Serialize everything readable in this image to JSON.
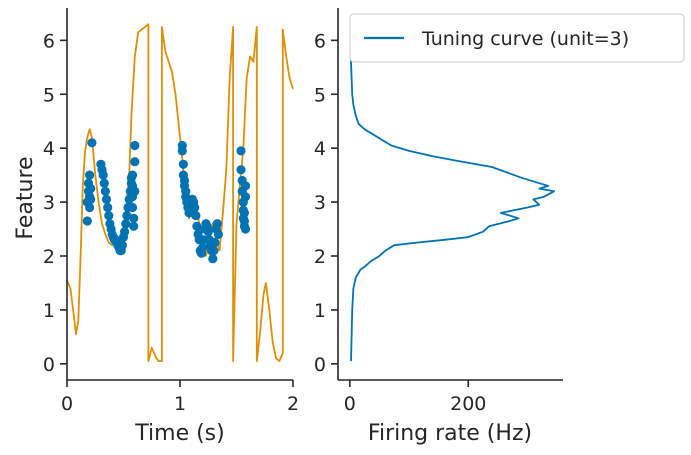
{
  "chart_data": [
    {
      "type": "line+scatter",
      "xlabel": "Time (s)",
      "ylabel": "Feature",
      "xlim": [
        0,
        2
      ],
      "ylim": [
        -0.3,
        6.6
      ],
      "xticks": [
        0,
        1,
        2
      ],
      "yticks": [
        0,
        1,
        2,
        3,
        4,
        5,
        6
      ],
      "xtick_labels": [
        "0",
        "1",
        "2"
      ],
      "ytick_labels": [
        "0",
        "1",
        "2",
        "3",
        "4",
        "5",
        "6"
      ],
      "grid": false,
      "colors": {
        "line": "#DE8F05",
        "scatter": "#0173B2"
      },
      "line": {
        "x": [
          0.0,
          0.03,
          0.06,
          0.08,
          0.1,
          0.12,
          0.14,
          0.16,
          0.18,
          0.2,
          0.22,
          0.25,
          0.28,
          0.31,
          0.34,
          0.37,
          0.4,
          0.43,
          0.46,
          0.49,
          0.52,
          0.55,
          0.57,
          0.6,
          0.63,
          0.66,
          0.69,
          0.72,
          0.72,
          0.75,
          0.78,
          0.81,
          0.84,
          0.84,
          0.87,
          0.9,
          0.93,
          0.96,
          0.99,
          1.02,
          1.05,
          1.08,
          1.11,
          1.14,
          1.17,
          1.2,
          1.23,
          1.26,
          1.29,
          1.32,
          1.35,
          1.38,
          1.41,
          1.44,
          1.47,
          1.47,
          1.5,
          1.53,
          1.56,
          1.59,
          1.62,
          1.65,
          1.68,
          1.68,
          1.71,
          1.74,
          1.76,
          1.79,
          1.82,
          1.85,
          1.88,
          1.91,
          1.91,
          1.94,
          1.97,
          2.0
        ],
        "y": [
          1.55,
          1.4,
          0.9,
          0.55,
          0.8,
          2.0,
          3.3,
          3.95,
          4.2,
          4.35,
          4.2,
          3.5,
          3.0,
          2.6,
          2.4,
          2.25,
          2.2,
          2.3,
          2.15,
          2.4,
          2.8,
          3.5,
          4.6,
          5.7,
          6.15,
          6.2,
          6.25,
          6.3,
          0.05,
          0.3,
          0.15,
          0.05,
          0.05,
          6.25,
          5.8,
          5.6,
          5.4,
          5.0,
          4.4,
          3.8,
          3.1,
          2.7,
          2.9,
          3.0,
          2.6,
          2.1,
          2.0,
          2.3,
          2.6,
          2.3,
          2.1,
          2.8,
          3.6,
          5.3,
          6.25,
          0.05,
          2.6,
          3.3,
          4.0,
          5.3,
          5.7,
          5.6,
          6.25,
          0.05,
          0.6,
          1.3,
          1.5,
          1.0,
          0.4,
          0.1,
          0.05,
          0.2,
          6.2,
          5.7,
          5.3,
          5.1
        ]
      },
      "scatter": {
        "x": [
          0.18,
          0.18,
          0.19,
          0.19,
          0.2,
          0.2,
          0.2,
          0.21,
          0.21,
          0.22,
          0.3,
          0.31,
          0.32,
          0.33,
          0.34,
          0.35,
          0.36,
          0.37,
          0.38,
          0.39,
          0.4,
          0.41,
          0.42,
          0.43,
          0.44,
          0.45,
          0.46,
          0.47,
          0.48,
          0.49,
          0.5,
          0.51,
          0.52,
          0.53,
          0.54,
          0.55,
          0.56,
          0.57,
          0.57,
          0.58,
          0.58,
          0.58,
          0.58,
          0.59,
          0.59,
          0.6,
          0.6,
          0.6,
          1.02,
          1.02,
          1.03,
          1.03,
          1.04,
          1.04,
          1.05,
          1.05,
          1.06,
          1.07,
          1.08,
          1.09,
          1.1,
          1.11,
          1.12,
          1.13,
          1.14,
          1.15,
          1.16,
          1.17,
          1.18,
          1.19,
          1.2,
          1.21,
          1.22,
          1.23,
          1.24,
          1.25,
          1.26,
          1.27,
          1.28,
          1.29,
          1.3,
          1.31,
          1.32,
          1.33,
          1.34,
          1.54,
          1.54,
          1.55,
          1.55,
          1.56,
          1.56,
          1.56,
          1.57,
          1.57,
          1.57,
          1.58,
          1.58,
          1.58
        ],
        "y": [
          2.65,
          3.0,
          3.2,
          3.35,
          3.5,
          3.1,
          2.9,
          3.25,
          3.05,
          4.1,
          3.7,
          3.6,
          3.5,
          3.35,
          3.2,
          3.05,
          2.9,
          2.75,
          2.6,
          2.5,
          2.4,
          2.35,
          2.3,
          2.3,
          2.25,
          2.2,
          2.15,
          2.1,
          2.1,
          2.2,
          2.35,
          2.45,
          2.6,
          2.75,
          2.9,
          3.05,
          3.2,
          3.35,
          3.45,
          3.5,
          3.3,
          3.1,
          2.9,
          2.7,
          2.55,
          3.75,
          4.05,
          3.2,
          4.05,
          3.95,
          3.7,
          3.5,
          3.4,
          3.3,
          3.2,
          3.1,
          3.0,
          2.9,
          2.8,
          2.85,
          2.95,
          3.05,
          3.0,
          2.9,
          2.75,
          2.55,
          2.4,
          2.3,
          2.1,
          2.05,
          2.15,
          2.3,
          2.5,
          2.6,
          2.55,
          2.45,
          2.3,
          2.2,
          2.1,
          1.95,
          2.1,
          2.25,
          2.5,
          2.6,
          2.4,
          3.95,
          3.6,
          3.4,
          3.2,
          3.0,
          2.85,
          2.7,
          2.55,
          2.65,
          2.8,
          3.1,
          3.3,
          2.5
        ]
      }
    },
    {
      "type": "line",
      "xlabel": "Firing rate (Hz)",
      "ylabel": "",
      "xlim": [
        -20,
        360
      ],
      "ylim": [
        -0.3,
        6.6
      ],
      "xticks": [
        0,
        200
      ],
      "yticks": [
        0,
        1,
        2,
        3,
        4,
        5,
        6
      ],
      "xtick_labels": [
        "0",
        "200"
      ],
      "ytick_labels": [
        "0",
        "1",
        "2",
        "3",
        "4",
        "5",
        "6"
      ],
      "grid": false,
      "legend": {
        "placement": "top-right",
        "entries": [
          "Tuning curve (unit=3)"
        ]
      },
      "colors": {
        "line": "#0173B2"
      },
      "series": [
        {
          "name": "Tuning curve (unit=3)",
          "y": [
            0.05,
            0.5,
            1.0,
            1.4,
            1.6,
            1.75,
            1.8,
            1.9,
            2.0,
            2.1,
            2.2,
            2.25,
            2.3,
            2.35,
            2.45,
            2.55,
            2.65,
            2.7,
            2.8,
            2.9,
            2.95,
            3.05,
            3.1,
            3.2,
            3.25,
            3.3,
            3.35,
            3.45,
            3.55,
            3.65,
            3.75,
            3.85,
            3.95,
            4.05,
            4.15,
            4.25,
            4.35,
            4.45,
            4.6,
            4.8,
            5.0,
            5.3,
            5.6,
            6.25
          ],
          "x": [
            2,
            3,
            4,
            6,
            10,
            18,
            25,
            35,
            50,
            60,
            75,
            115,
            160,
            200,
            225,
            235,
            270,
            285,
            255,
            300,
            320,
            310,
            328,
            345,
            320,
            335,
            320,
            290,
            265,
            240,
            190,
            140,
            100,
            70,
            55,
            40,
            25,
            15,
            10,
            6,
            4,
            3,
            2,
            2
          ]
        }
      ]
    }
  ]
}
